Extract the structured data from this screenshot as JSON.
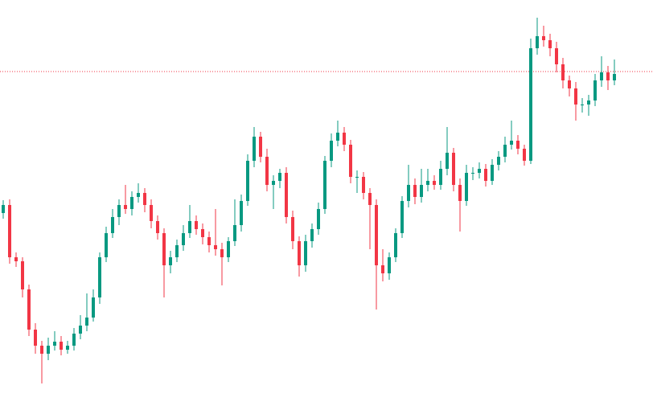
{
  "chart_data": {
    "type": "candlestick",
    "ylim": [
      0,
      510
    ],
    "up_color": "#089981",
    "down_color": "#f23645",
    "price_line": 421,
    "price_line_color": "#f23645",
    "open": [
      245,
      255,
      190,
      185,
      150,
      100,
      80,
      70,
      80,
      85,
      75,
      80,
      95,
      105,
      115,
      140,
      190,
      220,
      240,
      255,
      250,
      265,
      270,
      255,
      235,
      220,
      180,
      190,
      205,
      220,
      235,
      225,
      215,
      205,
      200,
      190,
      210,
      230,
      260,
      310,
      340,
      315,
      280,
      285,
      295,
      240,
      210,
      180,
      210,
      225,
      250,
      310,
      335,
      345,
      330,
      290,
      290,
      270,
      255,
      180,
      170,
      190,
      220,
      260,
      280,
      265,
      280,
      285,
      280,
      300,
      320,
      280,
      260,
      295,
      295,
      300,
      285,
      305,
      315,
      330,
      335,
      325,
      310,
      450,
      465,
      460,
      450,
      430,
      410,
      400,
      380,
      380,
      385,
      410,
      420,
      410
    ],
    "high": [
      261,
      262,
      196,
      190,
      156,
      108,
      86,
      90,
      98,
      92,
      86,
      102,
      118,
      145,
      150,
      196,
      228,
      250,
      262,
      280,
      272,
      282,
      276,
      262,
      242,
      226,
      198,
      212,
      230,
      255,
      242,
      232,
      222,
      250,
      208,
      215,
      262,
      268,
      318,
      352,
      346,
      325,
      292,
      300,
      302,
      248,
      216,
      218,
      232,
      258,
      316,
      344,
      360,
      352,
      336,
      298,
      296,
      276,
      262,
      200,
      196,
      226,
      266,
      305,
      288,
      300,
      300,
      292,
      310,
      352,
      326,
      288,
      305,
      302,
      308,
      306,
      312,
      322,
      340,
      360,
      342,
      330,
      462,
      488,
      478,
      468,
      458,
      438,
      416,
      408,
      388,
      392,
      418,
      440,
      428,
      436
    ],
    "low": [
      238,
      182,
      178,
      140,
      92,
      70,
      33,
      62,
      74,
      68,
      70,
      74,
      88,
      98,
      110,
      132,
      184,
      214,
      230,
      244,
      242,
      258,
      246,
      226,
      212,
      140,
      170,
      184,
      198,
      214,
      218,
      206,
      196,
      192,
      155,
      184,
      204,
      222,
      254,
      302,
      308,
      272,
      250,
      276,
      232,
      200,
      166,
      172,
      202,
      218,
      244,
      302,
      328,
      322,
      282,
      270,
      262,
      200,
      125,
      160,
      162,
      184,
      214,
      252,
      256,
      258,
      272,
      274,
      274,
      292,
      272,
      222,
      254,
      286,
      288,
      278,
      280,
      298,
      308,
      324,
      318,
      304,
      306,
      442,
      452,
      440,
      420,
      400,
      390,
      360,
      370,
      366,
      378,
      402,
      398,
      404
    ],
    "close": [
      255,
      190,
      185,
      150,
      100,
      80,
      70,
      80,
      85,
      75,
      80,
      95,
      105,
      115,
      140,
      190,
      220,
      240,
      255,
      250,
      265,
      270,
      255,
      235,
      220,
      180,
      190,
      205,
      220,
      235,
      225,
      215,
      205,
      200,
      190,
      210,
      230,
      260,
      310,
      340,
      315,
      280,
      285,
      295,
      240,
      210,
      180,
      210,
      225,
      250,
      310,
      335,
      345,
      330,
      290,
      290,
      270,
      255,
      180,
      170,
      190,
      220,
      260,
      280,
      265,
      280,
      285,
      280,
      300,
      320,
      280,
      260,
      295,
      295,
      300,
      285,
      305,
      315,
      330,
      335,
      325,
      310,
      450,
      465,
      460,
      450,
      430,
      410,
      400,
      380,
      380,
      385,
      410,
      420,
      410,
      418
    ]
  }
}
